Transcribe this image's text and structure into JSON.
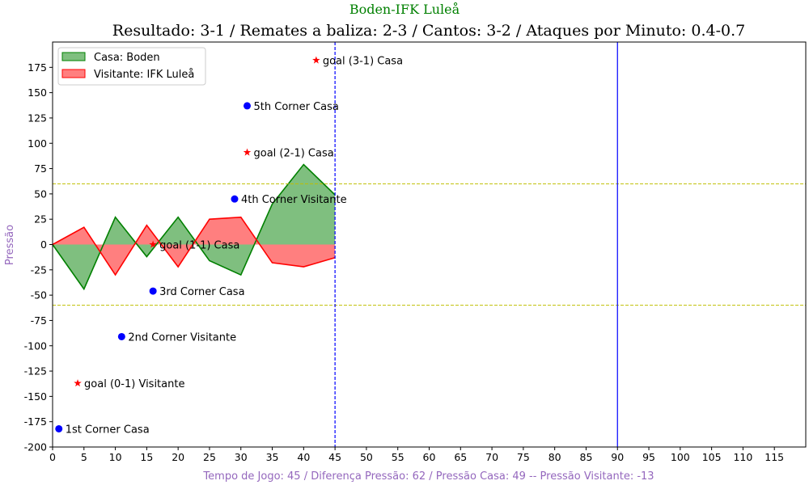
{
  "chart_data": {
    "type": "area",
    "suptitle": "Boden-IFK Luleå",
    "title": "Resultado: 3-1 / Remates a baliza: 2-3 / Cantos: 3-2 / Ataques por Minuto: 0.4-0.7",
    "xlabel": "Tempo de Jogo: 45 / Diferença Pressão: 62 / Pressão Casa: 49 -- Pressão Visitante: -13",
    "ylabel": "Pressão",
    "xlim": [
      0,
      120
    ],
    "ylim": [
      -200,
      200
    ],
    "xticks": [
      0,
      5,
      10,
      15,
      20,
      25,
      30,
      35,
      40,
      45,
      50,
      55,
      60,
      65,
      70,
      75,
      80,
      85,
      90,
      95,
      100,
      105,
      110,
      115
    ],
    "yticks": [
      -200,
      -175,
      -150,
      -125,
      -100,
      -75,
      -50,
      -25,
      0,
      25,
      50,
      75,
      100,
      125,
      150,
      175
    ],
    "legend_position": "upper-left",
    "series": [
      {
        "name": "Casa: Boden",
        "color": "#008000",
        "fill": "#7fbf7f",
        "x": [
          0,
          5,
          10,
          15,
          20,
          25,
          30,
          35,
          40,
          45
        ],
        "values": [
          0,
          -44,
          27,
          -12,
          27,
          -16,
          -30,
          40,
          79,
          49
        ]
      },
      {
        "name": "Visitante: IFK Luleå",
        "color": "#ff0000",
        "fill": "#ff7f7f",
        "x": [
          0,
          5,
          10,
          15,
          20,
          25,
          30,
          35,
          40,
          45
        ],
        "values": [
          0,
          17,
          -30,
          19,
          -22,
          25,
          27,
          -18,
          -22,
          -13
        ]
      }
    ],
    "reference_lines": {
      "horizontal": [
        {
          "y": 60,
          "color": "#bfbf00",
          "style": "dashed"
        },
        {
          "y": -60,
          "color": "#bfbf00",
          "style": "dashed"
        }
      ],
      "vertical": [
        {
          "x": 45,
          "color": "#0000ff",
          "style": "dashed"
        },
        {
          "x": 90,
          "color": "#0000ff",
          "style": "solid"
        }
      ]
    },
    "events": [
      {
        "x": 1,
        "y": -182,
        "marker": "circle",
        "color": "#0000ff",
        "label": "1st Corner Casa"
      },
      {
        "x": 4,
        "y": -137,
        "marker": "star",
        "color": "#ff0000",
        "label": "goal (0-1) Visitante"
      },
      {
        "x": 11,
        "y": -91,
        "marker": "circle",
        "color": "#0000ff",
        "label": "2nd Corner Visitante"
      },
      {
        "x": 16,
        "y": -46,
        "marker": "circle",
        "color": "#0000ff",
        "label": "3rd Corner Casa"
      },
      {
        "x": 16,
        "y": 0,
        "marker": "star",
        "color": "#ff0000",
        "label": "goal (1-1) Casa"
      },
      {
        "x": 29,
        "y": 45,
        "marker": "circle",
        "color": "#0000ff",
        "label": "4th Corner Visitante"
      },
      {
        "x": 31,
        "y": 91,
        "marker": "star",
        "color": "#ff0000",
        "label": "goal (2-1) Casa"
      },
      {
        "x": 31,
        "y": 137,
        "marker": "circle",
        "color": "#0000ff",
        "label": "5th Corner Casa"
      },
      {
        "x": 42,
        "y": 182,
        "marker": "star",
        "color": "#ff0000",
        "label": "goal (3-1) Casa"
      }
    ]
  }
}
